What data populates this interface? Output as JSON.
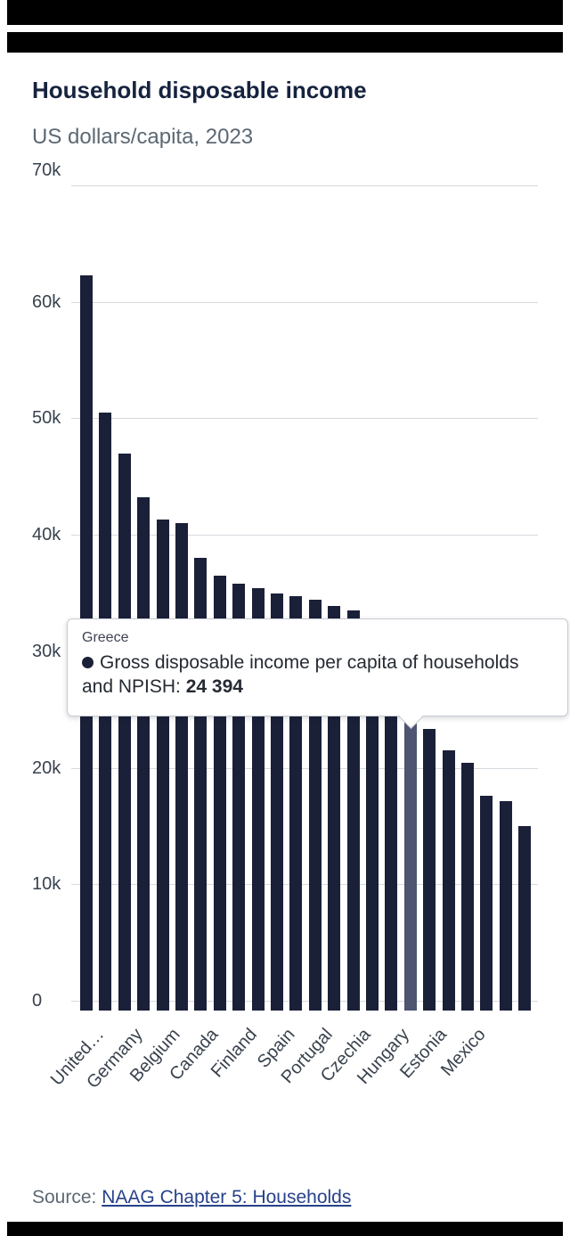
{
  "chart_data": {
    "type": "bar",
    "title": "Household disposable income",
    "subtitle": "US dollars/capita, 2023",
    "ylabel": "US dollars/capita",
    "year": "2023",
    "ylim": [
      0,
      70000
    ],
    "ytick_labels": [
      "70k",
      "60k",
      "50k",
      "40k",
      "30k",
      "20k",
      "10k",
      "0"
    ],
    "grid": true,
    "legend": "none",
    "bars": [
      {
        "label": "United…",
        "value": 62300
      },
      {
        "label": "",
        "value": 50500
      },
      {
        "label": "Germany",
        "value": 47000
      },
      {
        "label": "",
        "value": 43200
      },
      {
        "label": "Belgium",
        "value": 41300
      },
      {
        "label": "",
        "value": 41000
      },
      {
        "label": "Canada",
        "value": 38000
      },
      {
        "label": "",
        "value": 36500
      },
      {
        "label": "Finland",
        "value": 35800
      },
      {
        "label": "",
        "value": 35400
      },
      {
        "label": "Spain",
        "value": 35000
      },
      {
        "label": "",
        "value": 34700
      },
      {
        "label": "Portugal",
        "value": 34400
      },
      {
        "label": "",
        "value": 33900
      },
      {
        "label": "Czechia",
        "value": 33500
      },
      {
        "label": "",
        "value": 30000
      },
      {
        "label": "Hungary",
        "value": 26500
      },
      {
        "label": "",
        "value": 24394
      },
      {
        "label": "Estonia",
        "value": 23300
      },
      {
        "label": "",
        "value": 21500
      },
      {
        "label": "Mexico",
        "value": 20400
      },
      {
        "label": "",
        "value": 17600
      },
      {
        "label": "",
        "value": 17100
      },
      {
        "label": "",
        "value": 15000
      }
    ],
    "highlighted_index": 17,
    "highlighted_country": "Greece",
    "colors": {
      "bar": "#1a2038",
      "highlight": "#4d5572",
      "gridline": "#d6d9de"
    }
  },
  "tooltip": {
    "country": "Greece",
    "series_label": "Gross disposable income per capita of households and NPISH:",
    "value": "24 394"
  },
  "source": {
    "label": "Source:",
    "link_text": "NAAG Chapter 5: Households"
  }
}
